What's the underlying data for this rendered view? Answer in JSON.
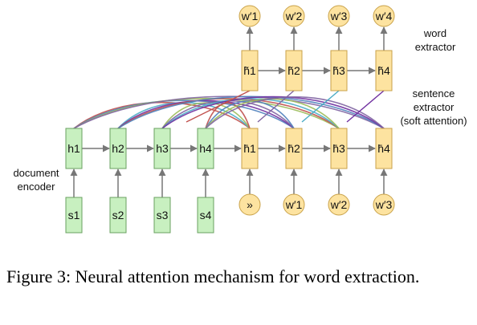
{
  "labels": {
    "word_extractor": [
      "word",
      "extractor"
    ],
    "sentence_extractor": [
      "sentence",
      "extractor",
      "(soft attention)"
    ],
    "document_encoder": [
      "document",
      "encoder"
    ]
  },
  "nodes": {
    "inputs": [
      "s1",
      "s2",
      "s3",
      "s4"
    ],
    "encoder": [
      "h1",
      "h2",
      "h3",
      "h4"
    ],
    "sentence_hidden": [
      "h̄1",
      "h̄2",
      "h̄3",
      "h̄4"
    ],
    "word_hidden": [
      "h̃1",
      "h̃2",
      "h̃3",
      "h̃4"
    ],
    "word_outputs": [
      "w′1",
      "w′2",
      "w′3",
      "w′4"
    ],
    "decoder_inputs": [
      "»",
      "w′1",
      "w′2",
      "w′3"
    ]
  },
  "colors": {
    "encoder_fill": "#c8f0c0",
    "encoder_stroke": "#6aa060",
    "decoder_fill": "#fde3a0",
    "decoder_stroke": "#c9a24a",
    "circle_fill": "#fde3a0",
    "circle_stroke": "#c9a24a",
    "arrow": "#777777",
    "attention": [
      "#c0504d",
      "#4f81bd",
      "#9bbb59",
      "#8064a2",
      "#4bacc6",
      "#7030a0"
    ]
  },
  "caption": "Figure 3: Neural attention mechanism for word extraction."
}
